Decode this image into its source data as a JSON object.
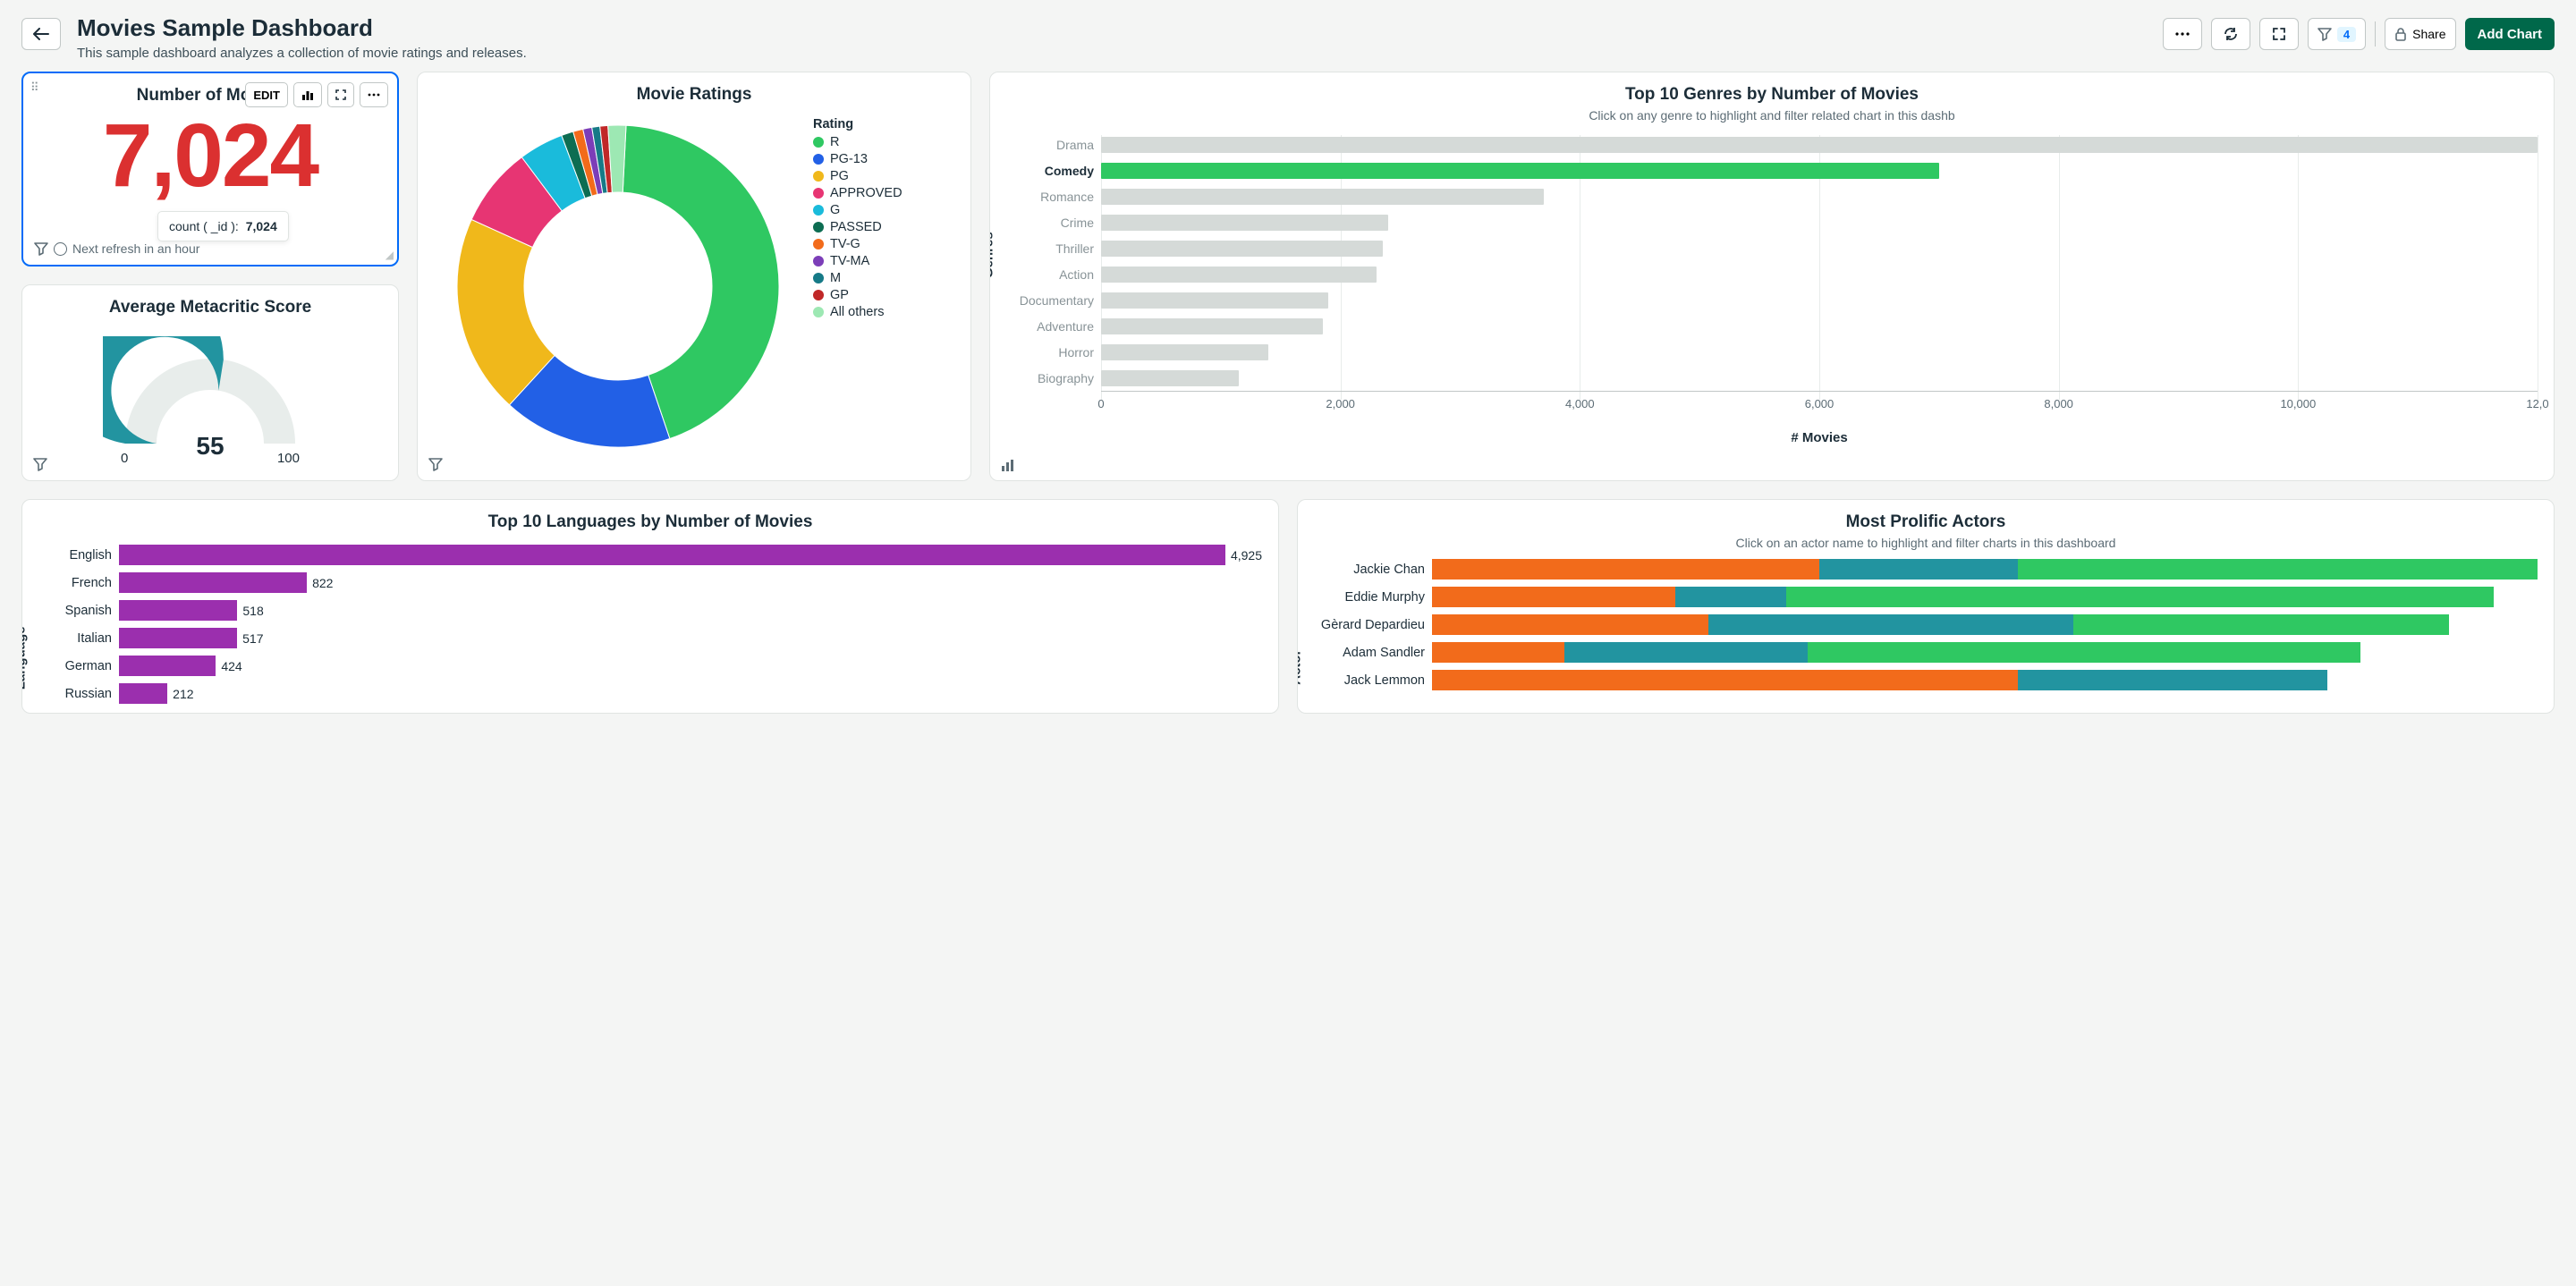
{
  "header": {
    "title": "Movies Sample Dashboard",
    "subtitle": "This sample dashboard analyzes a collection of movie ratings and releases.",
    "share_label": "Share",
    "add_chart_label": "Add Chart",
    "filter_count": "4"
  },
  "card_number": {
    "title": "Number of Movies",
    "value": "7,024",
    "value_color": "#db3030",
    "footer_text": "Next refresh in an hour",
    "edit_label": "EDIT",
    "tooltip_key": "count ( _id ):",
    "tooltip_val": "7,024"
  },
  "card_gauge": {
    "title": "Average Metacritic Score",
    "value": "55",
    "min": "0",
    "max": "100",
    "fill_pct": 55,
    "fill_color": "#2294a0",
    "track_color": "#e8edeb"
  },
  "card_donut": {
    "title": "Movie Ratings",
    "legend_title": "Rating",
    "slices": [
      {
        "label": "R",
        "color": "#2fc862",
        "value": 44
      },
      {
        "label": "PG-13",
        "color": "#2260e6",
        "value": 17
      },
      {
        "label": "PG",
        "color": "#f0b81b",
        "value": 20
      },
      {
        "label": "APPROVED",
        "color": "#e73573",
        "value": 8
      },
      {
        "label": "G",
        "color": "#1abbdb",
        "value": 4.5
      },
      {
        "label": "PASSED",
        "color": "#0d6d52",
        "value": 1.2
      },
      {
        "label": "TV-G",
        "color": "#f26b1b",
        "value": 1
      },
      {
        "label": "TV-MA",
        "color": "#7c3eb8",
        "value": 0.9
      },
      {
        "label": "M",
        "color": "#167a87",
        "value": 0.8
      },
      {
        "label": "GP",
        "color": "#c02828",
        "value": 0.8
      },
      {
        "label": "All others",
        "color": "#9de8b3",
        "value": 1.8
      }
    ]
  },
  "card_genres": {
    "title": "Top 10 Genres by Number of Movies",
    "subtitle": "Click on any genre to highlight and filter related chart in this dashb",
    "y_axis_label": "Genres",
    "x_axis_label": "# Movies",
    "x_max": 12000,
    "x_ticks": [
      0,
      2000,
      4000,
      6000,
      8000,
      10000,
      12000
    ],
    "x_tick_labels": [
      "0",
      "2,000",
      "4,000",
      "6,000",
      "8,000",
      "10,000",
      "12,0"
    ],
    "bar_color_default": "#d5dad8",
    "bar_color_highlight": "#2fc862",
    "rows": [
      {
        "label": "Drama",
        "value": 12200,
        "highlight": false
      },
      {
        "label": "Comedy",
        "value": 7000,
        "highlight": true
      },
      {
        "label": "Romance",
        "value": 3700,
        "highlight": false
      },
      {
        "label": "Crime",
        "value": 2400,
        "highlight": false
      },
      {
        "label": "Thriller",
        "value": 2350,
        "highlight": false
      },
      {
        "label": "Action",
        "value": 2300,
        "highlight": false
      },
      {
        "label": "Documentary",
        "value": 1900,
        "highlight": false
      },
      {
        "label": "Adventure",
        "value": 1850,
        "highlight": false
      },
      {
        "label": "Horror",
        "value": 1400,
        "highlight": false
      },
      {
        "label": "Biography",
        "value": 1150,
        "highlight": false
      }
    ]
  },
  "card_languages": {
    "title": "Top 10 Languages by Number of Movies",
    "max": 5000,
    "bar_color": "#9b2fae",
    "rows": [
      {
        "label": "English",
        "value": 4925
      },
      {
        "label": "French",
        "value": 822
      },
      {
        "label": "Spanish",
        "value": 518
      },
      {
        "label": "Italian",
        "value": 517
      },
      {
        "label": "German",
        "value": 424
      },
      {
        "label": "Russian",
        "value": 212
      }
    ],
    "y_axis_label": "Language"
  },
  "card_actors": {
    "title": "Most Prolific Actors",
    "subtitle": "Click on an actor name to highlight and filter charts in this dashboard",
    "seg_colors": [
      "#f26b1b",
      "#2294a0",
      "#2fc862"
    ],
    "rows": [
      {
        "label": "Jackie Chan",
        "segs": [
          35,
          18,
          47
        ]
      },
      {
        "label": "Eddie Murphy",
        "segs": [
          22,
          10,
          64
        ]
      },
      {
        "label": "Gèrard Depardieu",
        "segs": [
          25,
          33,
          34
        ]
      },
      {
        "label": "Adam Sandler",
        "segs": [
          12,
          22,
          50
        ]
      },
      {
        "label": "Jack Lemmon",
        "segs": [
          53,
          28,
          0
        ]
      }
    ],
    "y_axis_label": "Actor"
  }
}
